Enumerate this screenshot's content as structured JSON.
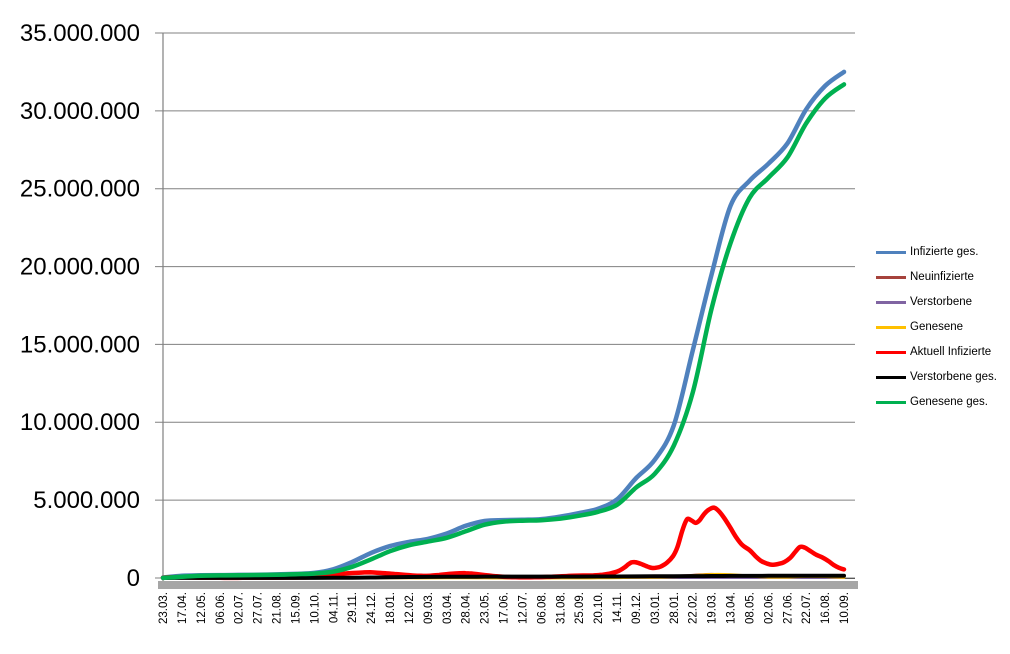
{
  "figure": {
    "background": "#FFFFFF",
    "title": ""
  },
  "chart_data": {
    "type": "line",
    "title": "",
    "xlabel": "",
    "ylabel": "",
    "grid": "horizontal",
    "legend_position": "right",
    "ylim": [
      0,
      35000000
    ],
    "y_tick_labels": [
      "35.000.000",
      "30.000.000",
      "25.000.000",
      "20.000.000",
      "15.000.000",
      "10.000.000",
      "5.000.000",
      "0"
    ],
    "x_tick_labels": [
      "23.03.",
      "17.04.",
      "12.05.",
      "06.06.",
      "02.07.",
      "27.07.",
      "21.08.",
      "15.09.",
      "10.10.",
      "04.11.",
      "29.11.",
      "24.12.",
      "18.01.",
      "12.02.",
      "09.03.",
      "03.04.",
      "28.04.",
      "23.05.",
      "17.06.",
      "12.07.",
      "06.08.",
      "31.08.",
      "25.09.",
      "20.10.",
      "14.11.",
      "09.12.",
      "03.01.",
      "28.01.",
      "22.02.",
      "19.03.",
      "13.04.",
      "08.05.",
      "02.06.",
      "27.06.",
      "22.07.",
      "16.08.",
      "10.09."
    ],
    "x_tick_interval_days": 25,
    "x_range_days": [
      0,
      900
    ],
    "value_unit": "persons (values stored in millions)",
    "style": {
      "gridline_color": "#808080",
      "axis_line_color": "#808080",
      "baseline_bar_color": "#A6A6A6",
      "text_color": "#000000"
    },
    "series": [
      {
        "name": "Infizierte ges.",
        "color": "#4F81BD",
        "day_step": 25,
        "values_millions": [
          0.03,
          0.145,
          0.172,
          0.184,
          0.196,
          0.206,
          0.232,
          0.265,
          0.325,
          0.56,
          1.03,
          1.61,
          2.05,
          2.32,
          2.51,
          2.86,
          3.35,
          3.66,
          3.72,
          3.74,
          3.78,
          3.94,
          4.17,
          4.45,
          5.05,
          6.4,
          7.6,
          9.8,
          14.6,
          19.5,
          23.9,
          25.5,
          26.6,
          27.9,
          30.1,
          31.6,
          32.5
        ]
      },
      {
        "name": "Neuinfizierte",
        "color": "#A6423C",
        "day_step": 25,
        "values_millions": [
          0.004,
          0.002,
          0.001,
          0.0004,
          0.0004,
          0.0008,
          0.0015,
          0.0019,
          0.004,
          0.018,
          0.019,
          0.024,
          0.012,
          0.008,
          0.01,
          0.02,
          0.021,
          0.007,
          0.0012,
          0.0009,
          0.003,
          0.009,
          0.008,
          0.012,
          0.043,
          0.055,
          0.035,
          0.12,
          0.185,
          0.25,
          0.17,
          0.065,
          0.035,
          0.085,
          0.115,
          0.05,
          0.025
        ]
      },
      {
        "name": "Verstorbene",
        "color": "#8064A2",
        "day_step": 25,
        "values_millions": [
          0.0002,
          0.0002,
          0.0001,
          5e-05,
          3e-05,
          3e-05,
          4e-05,
          5e-05,
          0.0001,
          0.0003,
          0.0006,
          0.0008,
          0.0009,
          0.0007,
          0.0004,
          0.0003,
          0.0003,
          0.0002,
          0.0001,
          0.0001,
          0.0001,
          0.0001,
          0.0002,
          0.0002,
          0.0003,
          0.0004,
          0.0004,
          0.0002,
          0.0002,
          0.0003,
          0.0003,
          0.0002,
          0.0001,
          0.0001,
          0.0001,
          0.0001,
          0.0001
        ]
      },
      {
        "name": "Genesene",
        "color": "#FFC000",
        "day_step": 25,
        "values_millions": [
          0.002,
          0.004,
          0.0025,
          0.0008,
          0.0005,
          0.0007,
          0.0012,
          0.0016,
          0.003,
          0.01,
          0.017,
          0.021,
          0.016,
          0.01,
          0.008,
          0.015,
          0.02,
          0.012,
          0.004,
          0.0012,
          0.002,
          0.006,
          0.007,
          0.01,
          0.028,
          0.048,
          0.042,
          0.08,
          0.15,
          0.225,
          0.215,
          0.13,
          0.06,
          0.06,
          0.105,
          0.095,
          0.045
        ]
      },
      {
        "name": "Aktuell Infizierte",
        "color": "#FF0000",
        "points_day_value_millions": [
          [
            0,
            0.02
          ],
          [
            10,
            0.045
          ],
          [
            18,
            0.058
          ],
          [
            28,
            0.048
          ],
          [
            38,
            0.03
          ],
          [
            50,
            0.018
          ],
          [
            62,
            0.012
          ],
          [
            75,
            0.01
          ],
          [
            90,
            0.009
          ],
          [
            105,
            0.01
          ],
          [
            120,
            0.012
          ],
          [
            135,
            0.015
          ],
          [
            150,
            0.021
          ],
          [
            165,
            0.024
          ],
          [
            180,
            0.03
          ],
          [
            195,
            0.05
          ],
          [
            208,
            0.085
          ],
          [
            220,
            0.14
          ],
          [
            232,
            0.23
          ],
          [
            243,
            0.295
          ],
          [
            255,
            0.33
          ],
          [
            266,
            0.36
          ],
          [
            274,
            0.365
          ],
          [
            283,
            0.34
          ],
          [
            294,
            0.3
          ],
          [
            306,
            0.26
          ],
          [
            318,
            0.205
          ],
          [
            330,
            0.16
          ],
          [
            341,
            0.14
          ],
          [
            353,
            0.148
          ],
          [
            365,
            0.195
          ],
          [
            377,
            0.255
          ],
          [
            389,
            0.295
          ],
          [
            400,
            0.31
          ],
          [
            410,
            0.275
          ],
          [
            420,
            0.22
          ],
          [
            431,
            0.158
          ],
          [
            441,
            0.108
          ],
          [
            451,
            0.072
          ],
          [
            461,
            0.05
          ],
          [
            471,
            0.04
          ],
          [
            481,
            0.038
          ],
          [
            491,
            0.046
          ],
          [
            502,
            0.06
          ],
          [
            514,
            0.085
          ],
          [
            527,
            0.115
          ],
          [
            541,
            0.145
          ],
          [
            555,
            0.158
          ],
          [
            569,
            0.17
          ],
          [
            581,
            0.215
          ],
          [
            592,
            0.3
          ],
          [
            602,
            0.45
          ],
          [
            610,
            0.68
          ],
          [
            615,
            0.88
          ],
          [
            619,
            1.0
          ],
          [
            623,
            1.02
          ],
          [
            628,
            0.97
          ],
          [
            634,
            0.86
          ],
          [
            640,
            0.74
          ],
          [
            646,
            0.65
          ],
          [
            652,
            0.66
          ],
          [
            658,
            0.74
          ],
          [
            666,
            0.98
          ],
          [
            674,
            1.4
          ],
          [
            680,
            2.0
          ],
          [
            686,
            3.0
          ],
          [
            691,
            3.65
          ],
          [
            694,
            3.8
          ],
          [
            699,
            3.68
          ],
          [
            704,
            3.54
          ],
          [
            709,
            3.7
          ],
          [
            715,
            4.1
          ],
          [
            721,
            4.38
          ],
          [
            728,
            4.52
          ],
          [
            734,
            4.32
          ],
          [
            741,
            3.9
          ],
          [
            749,
            3.3
          ],
          [
            757,
            2.65
          ],
          [
            766,
            2.1
          ],
          [
            775,
            1.8
          ],
          [
            783,
            1.4
          ],
          [
            791,
            1.08
          ],
          [
            798,
            0.93
          ],
          [
            805,
            0.85
          ],
          [
            813,
            0.9
          ],
          [
            821,
            1.02
          ],
          [
            829,
            1.3
          ],
          [
            836,
            1.7
          ],
          [
            842,
            2.0
          ],
          [
            848,
            1.95
          ],
          [
            855,
            1.75
          ],
          [
            863,
            1.5
          ],
          [
            871,
            1.33
          ],
          [
            879,
            1.1
          ],
          [
            886,
            0.85
          ],
          [
            893,
            0.66
          ],
          [
            900,
            0.55
          ]
        ]
      },
      {
        "name": "Verstorbene ges.",
        "color": "#000000",
        "day_step": 25,
        "values_millions": [
          0.0002,
          0.0045,
          0.0075,
          0.0086,
          0.009,
          0.0091,
          0.0093,
          0.0094,
          0.0096,
          0.0106,
          0.015,
          0.029,
          0.048,
          0.064,
          0.072,
          0.0766,
          0.082,
          0.087,
          0.09,
          0.0912,
          0.0918,
          0.0922,
          0.093,
          0.095,
          0.0985,
          0.104,
          0.112,
          0.1175,
          0.1215,
          0.1265,
          0.132,
          0.136,
          0.139,
          0.1405,
          0.1425,
          0.145,
          0.148
        ]
      },
      {
        "name": "Genesene ges.",
        "color": "#00B050",
        "day_step": 25,
        "values_millions": [
          0.008,
          0.085,
          0.148,
          0.168,
          0.182,
          0.194,
          0.213,
          0.242,
          0.285,
          0.41,
          0.72,
          1.2,
          1.72,
          2.1,
          2.34,
          2.58,
          3.0,
          3.42,
          3.62,
          3.68,
          3.71,
          3.81,
          4.0,
          4.25,
          4.7,
          5.8,
          6.7,
          8.5,
          11.9,
          17.3,
          21.5,
          24.4,
          25.7,
          27.0,
          29.2,
          30.8,
          31.7
        ]
      }
    ]
  }
}
